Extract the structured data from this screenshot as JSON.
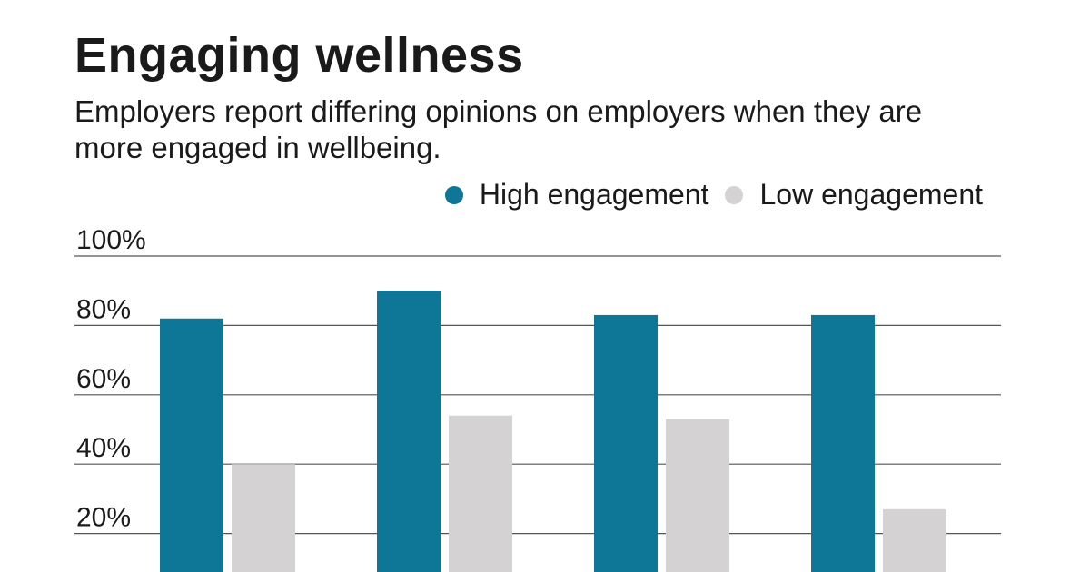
{
  "chart_data": {
    "type": "bar",
    "title": "Engaging wellness",
    "subtitle": "Employers report differing opinions on employers when they are more engaged in wellbeing.",
    "categories": [
      "",
      "",
      "",
      ""
    ],
    "series": [
      {
        "name": "High engagement",
        "color": "#0e7696",
        "values": [
          82,
          90,
          83,
          83
        ]
      },
      {
        "name": "Low engagement",
        "color": "#d4d2d3",
        "values": [
          40,
          54,
          53,
          27
        ]
      }
    ],
    "yticks": [
      "100%",
      "80%",
      "60%",
      "40%",
      "20%"
    ],
    "ytick_values": [
      100,
      80,
      60,
      40,
      20
    ],
    "ylim": [
      0,
      100
    ],
    "grid": true,
    "legend_position": "top-right"
  }
}
